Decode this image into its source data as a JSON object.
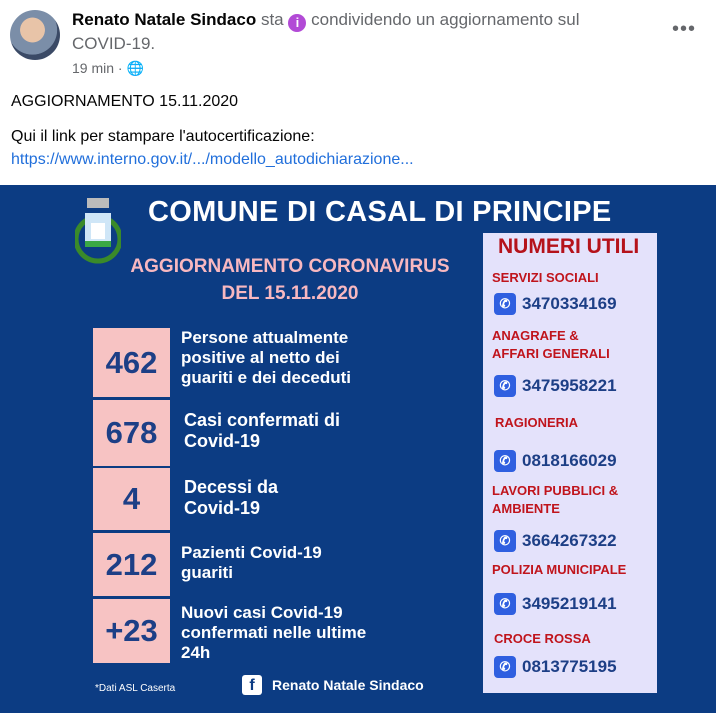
{
  "post": {
    "author": "Renato Natale Sindaco",
    "verb": "sta",
    "activity": "condividendo un aggiornamento sul COVID-19.",
    "time": "19 min",
    "separator": "·",
    "more": "•••",
    "line1": "AGGIORNAMENTO 15.11.2020",
    "line2": "Qui il link per stampare l'autocertificazione:",
    "link": "https://www.interno.gov.it/.../modello_autodichiarazione..."
  },
  "image": {
    "title": "COMUNE DI CASAL DI PRINCIPE",
    "subtitle1": "AGGIORNAMENTO CORONAVIRUS",
    "subtitle2": "DEL 15.11.2020",
    "stats": [
      {
        "value": "462",
        "label": "Persone attualmente positive al netto dei guariti e dei deceduti"
      },
      {
        "value": "678",
        "label": "Casi confermati di Covid-19"
      },
      {
        "value": "4",
        "label": "Decessi da Covid-19"
      },
      {
        "value": "212",
        "label": "Pazienti Covid-19 guariti"
      },
      {
        "value": "+23",
        "label": "Nuovi casi Covid-19 confermati nelle ultime 24h"
      }
    ],
    "numbers_title": "NUMERI UTILI",
    "numbers": [
      {
        "label": "SERVIZI SOCIALI",
        "phone": "3470334169"
      },
      {
        "label": "ANAGRAFE & AFFARI GENERALI",
        "phone": "3475958221"
      },
      {
        "label": "RAGIONERIA",
        "phone": "0818166029"
      },
      {
        "label": "LAVORI PUBBLICI & AMBIENTE",
        "phone": "3664267322"
      },
      {
        "label": "POLIZIA MUNICIPALE",
        "phone": "3495219141"
      },
      {
        "label": "CROCE ROSSA",
        "phone": "0813775195"
      }
    ],
    "source": "*Dati ASL Caserta",
    "page_name": "Renato Natale Sindaco"
  },
  "colors": {
    "background": "#0c3c83",
    "stat_box": "#f7c3c3",
    "panel": "#e4e2fb",
    "label_red": "#c0141c",
    "link": "#216fdb"
  }
}
